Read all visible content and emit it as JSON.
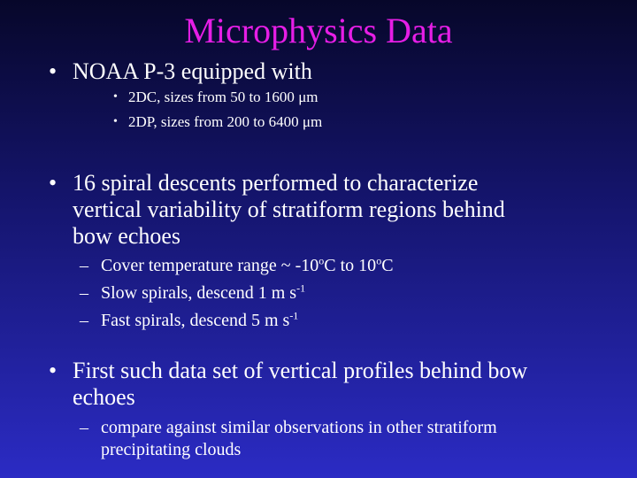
{
  "title": "Microphysics Data",
  "bullets": {
    "b1": {
      "text": "NOAA P-3 equipped with",
      "sub": [
        {
          "pre": "2DC, sizes from 50 to 1600 ",
          "unit": "μm"
        },
        {
          "pre": "2DP, sizes from 200 to 6400 ",
          "unit": "μm"
        }
      ]
    },
    "b2": {
      "line1": "16 spiral descents performed to characterize",
      "line2": "vertical variability of stratiform regions behind",
      "line3": "bow echoes",
      "sub": {
        "s1_pre": "Cover temperature range ~ -10",
        "s1_deg": "o",
        "s1_mid": "C to 10",
        "s1_deg2": "o",
        "s1_end": "C",
        "s2_pre": "Slow spirals, descend 1 m s",
        "s2_sup": "-1",
        "s3_pre": "Fast spirals, descend 5 m s",
        "s3_sup": "-1"
      }
    },
    "b3": {
      "line1": "First such data set of vertical profiles behind bow",
      "line2": "echoes",
      "sub_line1": "compare against similar observations in other stratiform",
      "sub_line2": "precipitating clouds"
    }
  },
  "symbols": {
    "bullet": "•",
    "dash": "–"
  }
}
